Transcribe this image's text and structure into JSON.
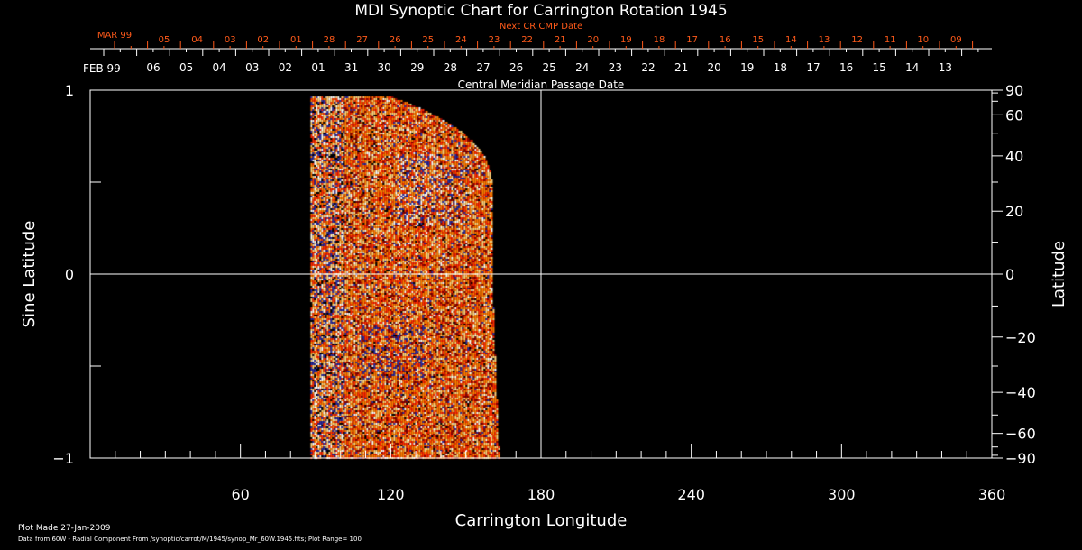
{
  "chart_data": {
    "type": "heatmap",
    "title": "MDI Synoptic Chart for Carrington Rotation 1945",
    "xlabel": "Carrington Longitude",
    "ylabel_left": "Sine Latitude",
    "ylabel_right": "Latitude",
    "xlim": [
      0,
      360
    ],
    "ylim": [
      -1,
      1
    ],
    "x_ticks": [
      60,
      120,
      180,
      240,
      300,
      360
    ],
    "x_ticks_labels": [
      "60",
      "120",
      "180",
      "240",
      "300",
      "360"
    ],
    "y_left_ticks": [
      1,
      0,
      -1
    ],
    "y_left_labels": [
      "1",
      "0",
      "−1"
    ],
    "y_right_ticks_deg": [
      90,
      60,
      40,
      20,
      0,
      -20,
      -40,
      -60,
      -90
    ],
    "y_right_labels": [
      "90",
      "60",
      "40",
      "20",
      "0",
      "−20",
      "−40",
      "−60",
      "−90"
    ],
    "data_longitude_range": [
      88,
      163
    ],
    "colormap": [
      "#000000",
      "#2a2aa0",
      "#8b0000",
      "#ff2a00",
      "#ff7a00",
      "#ffd27a",
      "#ffffff"
    ],
    "top_axis": {
      "title": "Central Meridian Passage Date",
      "month_label": "FEB 99",
      "dates": [
        "06",
        "05",
        "04",
        "03",
        "02",
        "01",
        "31",
        "30",
        "29",
        "28",
        "27",
        "26",
        "25",
        "24",
        "23",
        "22",
        "21",
        "20",
        "19",
        "18",
        "17",
        "16",
        "15",
        "14",
        "13"
      ]
    },
    "next_cr_axis": {
      "title": "Next CR CMP Date",
      "month_label": "MAR 99",
      "dates": [
        "05",
        "04",
        "03",
        "02",
        "01",
        "28",
        "27",
        "26",
        "25",
        "24",
        "23",
        "22",
        "21",
        "20",
        "19",
        "18",
        "17",
        "16",
        "15",
        "14",
        "13",
        "12",
        "11",
        "10",
        "09"
      ]
    },
    "guide_lines": {
      "vertical_longitude": 180,
      "horizontal_sine_latitude": 0
    }
  },
  "footer": {
    "plot_made": "Plot Made 27-Jan-2009",
    "data_source": "Data from 60W - Radial Component From /synoptic/carrot/M/1945/synop_Mr_60W.1945.fits; Plot Range=  100"
  },
  "colors": {
    "axis": "#ffffff",
    "next_cr": "#ff5a1a",
    "background": "#000000"
  }
}
